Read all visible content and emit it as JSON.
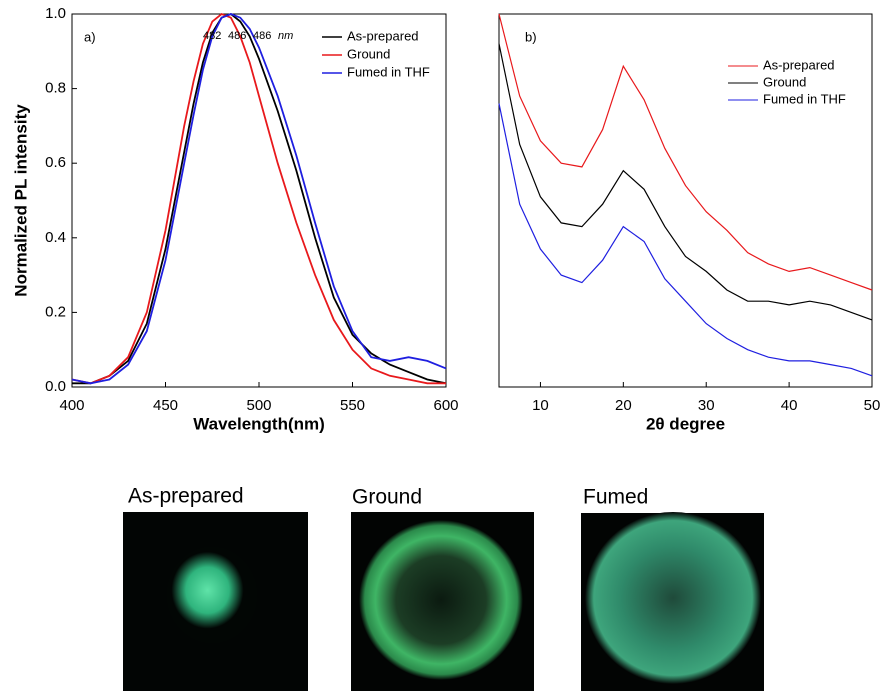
{
  "chart_data": [
    {
      "type": "line",
      "panel": "a)",
      "x_label": "Wavelength(nm)",
      "y_label": "Normalized PL intensity",
      "x": [
        400,
        410,
        420,
        430,
        440,
        450,
        460,
        465,
        470,
        475,
        480,
        485,
        490,
        495,
        500,
        510,
        520,
        530,
        540,
        550,
        560,
        570,
        580,
        590,
        600
      ],
      "series": [
        {
          "name": "As-prepared",
          "color": "#000000",
          "values": [
            0.01,
            0.01,
            0.03,
            0.07,
            0.17,
            0.37,
            0.63,
            0.76,
            0.87,
            0.95,
            0.99,
            1.0,
            0.98,
            0.94,
            0.88,
            0.74,
            0.58,
            0.4,
            0.24,
            0.14,
            0.09,
            0.06,
            0.04,
            0.02,
            0.01
          ]
        },
        {
          "name": "Ground",
          "color": "#e8191c",
          "values": [
            0.02,
            0.01,
            0.03,
            0.08,
            0.2,
            0.42,
            0.7,
            0.82,
            0.92,
            0.98,
            1.0,
            0.99,
            0.94,
            0.87,
            0.78,
            0.6,
            0.44,
            0.3,
            0.18,
            0.1,
            0.05,
            0.03,
            0.02,
            0.01,
            0.01
          ]
        },
        {
          "name": "Fumed in THF",
          "color": "#1f1fe0",
          "values": [
            0.02,
            0.01,
            0.02,
            0.06,
            0.15,
            0.34,
            0.6,
            0.73,
            0.85,
            0.94,
            0.99,
            1.0,
            0.99,
            0.96,
            0.91,
            0.78,
            0.62,
            0.44,
            0.27,
            0.15,
            0.08,
            0.07,
            0.08,
            0.07,
            0.05
          ]
        }
      ],
      "annotations": [
        {
          "text": "482",
          "color": "#e8191c"
        },
        {
          "text": "486",
          "color": "#000000"
        },
        {
          "text": "486",
          "color": "#1f1fe0"
        },
        {
          "text": "nm",
          "color": "#000000"
        }
      ],
      "xlim": [
        400,
        600
      ],
      "xticks": [
        400,
        450,
        500,
        550,
        600
      ],
      "ylim": [
        0,
        1.0
      ],
      "yticks": [
        {
          "value": 0,
          "label": "0.0"
        },
        0.2,
        0.4,
        0.6,
        0.8,
        {
          "value": 1.0,
          "label": "1.0"
        }
      ],
      "legend": "top-right"
    },
    {
      "type": "line",
      "panel": "b)",
      "x_label": "2θ degree",
      "x": [
        5,
        7.5,
        10,
        12.5,
        15,
        17.5,
        20,
        22.5,
        25,
        27.5,
        30,
        32.5,
        35,
        37.5,
        40,
        42.5,
        45,
        47.5,
        50
      ],
      "series": [
        {
          "name": "As-prepared",
          "color": "#e8191c",
          "values": [
            1.0,
            0.78,
            0.66,
            0.6,
            0.59,
            0.69,
            0.86,
            0.77,
            0.64,
            0.54,
            0.47,
            0.42,
            0.36,
            0.33,
            0.31,
            0.32,
            0.3,
            0.28,
            0.26
          ]
        },
        {
          "name": "Ground",
          "color": "#000000",
          "values": [
            0.92,
            0.65,
            0.51,
            0.44,
            0.43,
            0.49,
            0.58,
            0.53,
            0.43,
            0.35,
            0.31,
            0.26,
            0.23,
            0.23,
            0.22,
            0.23,
            0.22,
            0.2,
            0.18
          ]
        },
        {
          "name": "Fumed in THF",
          "color": "#1f1fe0",
          "values": [
            0.76,
            0.49,
            0.37,
            0.3,
            0.28,
            0.34,
            0.43,
            0.39,
            0.29,
            0.23,
            0.17,
            0.13,
            0.1,
            0.08,
            0.07,
            0.07,
            0.06,
            0.05,
            0.03
          ]
        }
      ],
      "xlim": [
        5,
        50
      ],
      "xticks": [
        10,
        20,
        30,
        40,
        50
      ],
      "ylim": [
        0,
        1
      ],
      "legend": "top-right"
    }
  ],
  "photos": [
    {
      "caption": "As-prepared"
    },
    {
      "caption": "Ground"
    },
    {
      "caption": "Fumed"
    }
  ]
}
